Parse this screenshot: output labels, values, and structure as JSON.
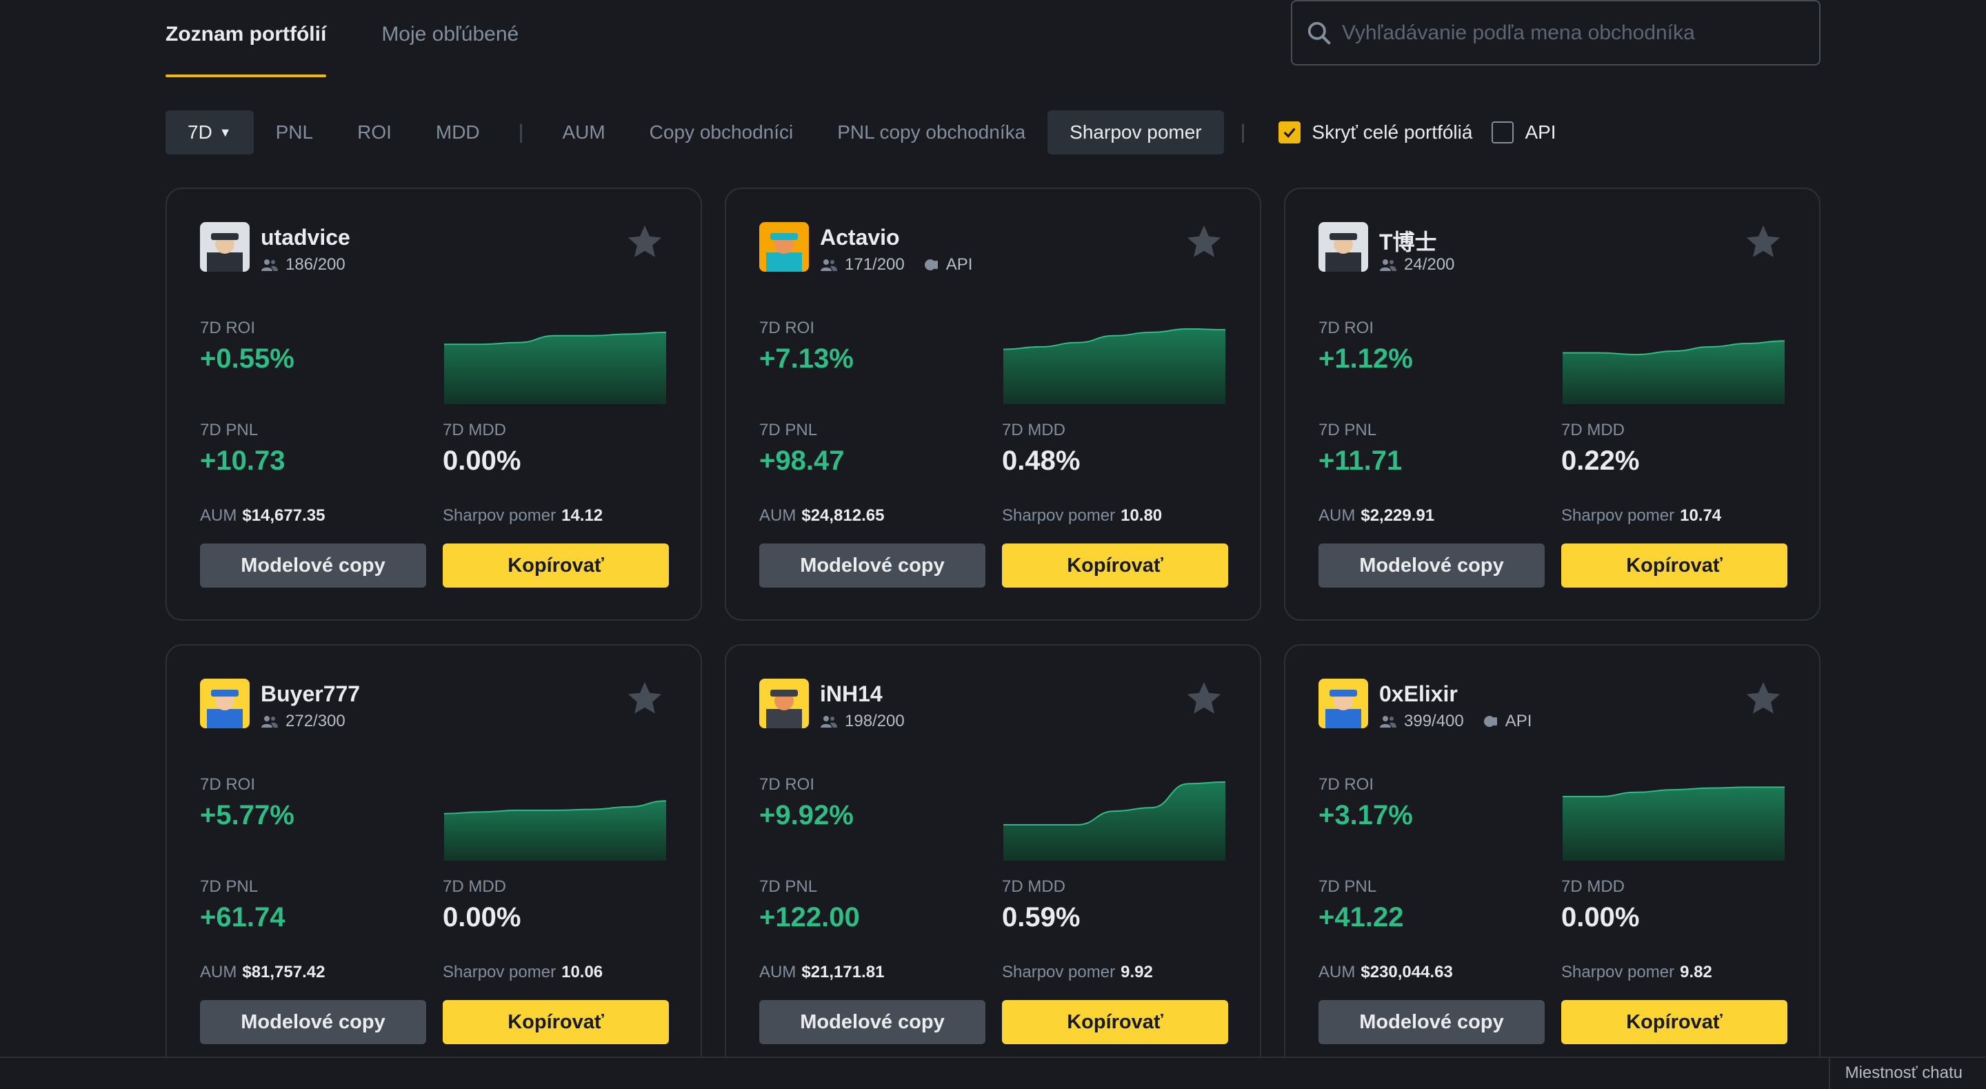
{
  "tabs": {
    "portfolio_list": "Zoznam portfólií",
    "favorites": "Moje obľúbené"
  },
  "search": {
    "placeholder": "Vyhľadávanie podľa mena obchodníka"
  },
  "filters": {
    "period": "7D",
    "pnl": "PNL",
    "roi": "ROI",
    "mdd": "MDD",
    "aum": "AUM",
    "copy_traders": "Copy obchodníci",
    "copy_trader_pnl": "PNL copy obchodníka",
    "sharpe": "Sharpov pomer",
    "hide_full": "Skryť celé portfóliá",
    "hide_full_checked": true,
    "api": "API",
    "api_checked": false
  },
  "labels": {
    "roi": "7D ROI",
    "pnl": "7D PNL",
    "mdd": "7D MDD",
    "aum": "AUM",
    "sharpe": "Sharpov pomer",
    "model_copy": "Modelové copy",
    "copy": "Kopírovať",
    "api": "API"
  },
  "cards": [
    {
      "name": "utadvice",
      "copiers": "186/200",
      "api": false,
      "roi": "+0.55%",
      "pnl": "+10.73",
      "mdd": "0.00%",
      "aum": "$14,677.35",
      "sharpe": "14.12",
      "spark": [
        0.3,
        0.3,
        0.28,
        0.2,
        0.2,
        0.18,
        0.16
      ],
      "avatar": "grey"
    },
    {
      "name": "Actavio",
      "copiers": "171/200",
      "api": true,
      "roi": "+7.13%",
      "pnl": "+98.47",
      "mdd": "0.48%",
      "aum": "$24,812.65",
      "sharpe": "10.80",
      "spark": [
        0.36,
        0.33,
        0.28,
        0.2,
        0.16,
        0.12,
        0.13
      ],
      "avatar": "orange"
    },
    {
      "name": "T博士",
      "copiers": "24/200",
      "api": false,
      "roi": "+1.12%",
      "pnl": "+11.71",
      "mdd": "0.22%",
      "aum": "$2,229.91",
      "sharpe": "10.74",
      "spark": [
        0.4,
        0.4,
        0.42,
        0.38,
        0.33,
        0.29,
        0.26
      ],
      "avatar": "grey"
    },
    {
      "name": "Buyer777",
      "copiers": "272/300",
      "api": false,
      "roi": "+5.77%",
      "pnl": "+61.74",
      "mdd": "0.00%",
      "aum": "$81,757.42",
      "sharpe": "10.06",
      "spark": [
        0.45,
        0.43,
        0.41,
        0.41,
        0.4,
        0.37,
        0.3
      ],
      "avatar": "blue"
    },
    {
      "name": "iNH14",
      "copiers": "198/200",
      "api": false,
      "roi": "+9.92%",
      "pnl": "+122.00",
      "mdd": "0.59%",
      "aum": "$21,171.81",
      "sharpe": "9.92",
      "spark": [
        0.58,
        0.58,
        0.58,
        0.42,
        0.38,
        0.1,
        0.08
      ],
      "avatar": "yellow"
    },
    {
      "name": "0xElixir",
      "copiers": "399/400",
      "api": true,
      "roi": "+3.17%",
      "pnl": "+41.22",
      "mdd": "0.00%",
      "aum": "$230,044.63",
      "sharpe": "9.82",
      "spark": [
        0.25,
        0.25,
        0.2,
        0.17,
        0.15,
        0.14,
        0.14
      ],
      "avatar": "blue"
    }
  ],
  "chat": {
    "label": "Miestnosť chatu"
  },
  "colors": {
    "accent": "#fcd535",
    "positive": "#2ebd85",
    "bg": "#181a20",
    "card_border": "#2b3139"
  }
}
